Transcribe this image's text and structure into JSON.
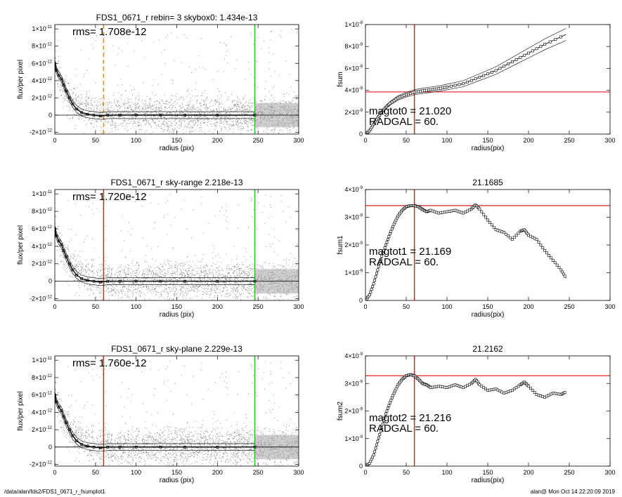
{
  "footer": {
    "path": "/data/alan/fds2/FDS1_0671_r_fsumplot1",
    "stamp": "alan@  Mon Oct 14 22:20:09 2019"
  },
  "colors": {
    "data": "#888888",
    "profile": "#000000",
    "red_line": "#dd2222",
    "green_line": "#22cc22",
    "orange_line": "#ee8822"
  },
  "chart_data": [
    {
      "type": "scatter",
      "title": "FDS1_0671_r rebin= 3    skybox0:  1.434e-13",
      "annotation": "rms= 1.708e-12",
      "xlabel": "radius (pix)",
      "ylabel": "flux/per pixel",
      "xlim": [
        0,
        300
      ],
      "ylim": [
        -2.2e-12,
        1.05e-11
      ],
      "xticks": [
        0,
        50,
        100,
        150,
        200,
        250,
        300
      ],
      "xtick_labels": [
        "0",
        "50",
        "100",
        "150",
        "200",
        "250",
        "300"
      ],
      "yticks": [
        -2e-12,
        0,
        2e-12,
        4e-12,
        6e-12,
        8e-12,
        1e-11
      ],
      "ytick_labels": [
        [
          "-2×10",
          "-12"
        ],
        [
          "0",
          ""
        ],
        [
          "2×10",
          "-12"
        ],
        [
          "4×10",
          "-12"
        ],
        [
          "6×10",
          "-12"
        ],
        [
          "8×10",
          "-12"
        ],
        [
          "1×10",
          "-11"
        ]
      ],
      "vlines": [
        {
          "x": 60,
          "color": "orange",
          "style": "dashed"
        },
        {
          "x": 246,
          "color": "green"
        }
      ],
      "hlines": [
        {
          "y": 0
        }
      ],
      "profile": {
        "x": [
          0,
          2,
          5,
          8,
          11,
          14,
          18,
          22,
          27,
          33,
          40,
          48,
          56,
          65,
          80,
          100,
          130,
          160,
          200,
          246
        ],
        "y": [
          6e-12,
          5.2e-12,
          4.6e-12,
          4.2e-12,
          3.5e-12,
          2.8e-12,
          2e-12,
          1.3e-12,
          7e-13,
          3e-13,
          1e-13,
          0,
          -1e-13,
          0,
          0,
          0,
          0,
          0,
          0,
          0
        ]
      }
    },
    {
      "type": "line",
      "title": "",
      "ylabel": "fsum",
      "xlabel": "radius(pix)",
      "xlim": [
        0,
        300
      ],
      "ylim": [
        0,
        1e-08
      ],
      "xticks": [
        0,
        50,
        100,
        150,
        200,
        250,
        300
      ],
      "xtick_labels": [
        "0",
        "50",
        "100",
        "150",
        "200",
        "250",
        "300"
      ],
      "yticks": [
        0,
        2e-09,
        4e-09,
        6e-09,
        8e-09,
        1e-08
      ],
      "ytick_labels": [
        [
          "0",
          ""
        ],
        [
          "2×10",
          "-9"
        ],
        [
          "4×10",
          "-9"
        ],
        [
          "6×10",
          "-9"
        ],
        [
          "8×10",
          "-9"
        ],
        [
          "1×10",
          "-8"
        ]
      ],
      "annotations": [
        "magtot0 =  21.020",
        "RADGAL =    60."
      ],
      "vlines": [
        {
          "x": 60,
          "color": "red"
        }
      ],
      "hlines": [
        {
          "y": 3.85e-09,
          "color": "red"
        }
      ],
      "series": [
        {
          "x": [
            0,
            5,
            10,
            15,
            20,
            25,
            30,
            40,
            50,
            60,
            70,
            80,
            90,
            100,
            120,
            140,
            160,
            180,
            200,
            220,
            246
          ],
          "values": [
            0.0,
            3e-10,
            9e-10,
            1.5e-09,
            2e-09,
            2.45e-09,
            2.8e-09,
            3.3e-09,
            3.6e-09,
            3.82e-09,
            3.95e-09,
            4.05e-09,
            4.15e-09,
            4.3e-09,
            4.6e-09,
            5.2e-09,
            5.8e-09,
            6.6e-09,
            7.4e-09,
            8.2e-09,
            9.1e-09
          ]
        }
      ]
    },
    {
      "type": "scatter",
      "title": "FDS1_0671_r sky-range  2.218e-13",
      "annotation": "rms= 1.720e-12",
      "xlabel": "radius (pix)",
      "ylabel": "flux/per pixel",
      "xlim": [
        0,
        300
      ],
      "ylim": [
        -2.2e-12,
        1.05e-11
      ],
      "xticks": [
        0,
        50,
        100,
        150,
        200,
        250,
        300
      ],
      "xtick_labels": [
        "0",
        "50",
        "100",
        "150",
        "200",
        "250",
        "300"
      ],
      "yticks": [
        -2e-12,
        0,
        2e-12,
        4e-12,
        6e-12,
        8e-12,
        1e-11
      ],
      "ytick_labels": [
        [
          "-2×10",
          "-12"
        ],
        [
          "0",
          ""
        ],
        [
          "2×10",
          "-12"
        ],
        [
          "4×10",
          "-12"
        ],
        [
          "6×10",
          "-12"
        ],
        [
          "8×10",
          "-12"
        ],
        [
          "1×10",
          "-11"
        ]
      ],
      "vlines": [
        {
          "x": 60,
          "color": "red"
        },
        {
          "x": 246,
          "color": "green"
        }
      ],
      "hlines": [
        {
          "y": 0
        }
      ],
      "profile": {
        "x": [
          0,
          2,
          5,
          8,
          11,
          14,
          18,
          22,
          27,
          33,
          40,
          48,
          56,
          65,
          80,
          100,
          130,
          160,
          200,
          246
        ],
        "y": [
          6e-12,
          5.2e-12,
          4.6e-12,
          4.2e-12,
          3.5e-12,
          2.8e-12,
          2e-12,
          1.3e-12,
          7e-13,
          3e-13,
          1e-13,
          0,
          -1e-13,
          0,
          0,
          0,
          0,
          0,
          0,
          0
        ]
      }
    },
    {
      "type": "scatter",
      "title": "21.1685",
      "ylabel": "fsum1",
      "xlabel": "radius(pix)",
      "xlim": [
        0,
        300
      ],
      "ylim": [
        0,
        4e-09
      ],
      "xticks": [
        0,
        50,
        100,
        150,
        200,
        250,
        300
      ],
      "xtick_labels": [
        "0",
        "50",
        "100",
        "150",
        "200",
        "250",
        "300"
      ],
      "yticks": [
        0,
        1e-09,
        2e-09,
        3e-09,
        4e-09
      ],
      "ytick_labels": [
        [
          "0",
          ""
        ],
        [
          "1×10",
          "-9"
        ],
        [
          "2×10",
          "-9"
        ],
        [
          "3×10",
          "-9"
        ],
        [
          "4×10",
          "-9"
        ]
      ],
      "annotations": [
        "magtot1 =  21.169",
        "RADGAL =    60."
      ],
      "vlines": [
        {
          "x": 60,
          "color": "red"
        }
      ],
      "hlines": [
        {
          "y": 3.42e-09,
          "color": "red"
        }
      ],
      "series": [
        {
          "x": [
            0,
            5,
            10,
            15,
            20,
            25,
            30,
            35,
            40,
            45,
            50,
            55,
            60,
            65,
            70,
            75,
            80,
            90,
            100,
            110,
            120,
            130,
            135,
            140,
            150,
            160,
            170,
            180,
            190,
            195,
            200,
            210,
            220,
            230,
            240,
            246
          ],
          "values": [
            0.0,
            2e-10,
            6e-10,
            1.1e-09,
            1.6e-09,
            2e-09,
            2.4e-09,
            2.75e-09,
            3.05e-09,
            3.25e-09,
            3.38e-09,
            3.42e-09,
            3.42e-09,
            3.38e-09,
            3.28e-09,
            3.2e-09,
            3.25e-09,
            3.15e-09,
            3.2e-09,
            3.25e-09,
            3.15e-09,
            3.3e-09,
            3.45e-09,
            3.3e-09,
            2.9e-09,
            2.55e-09,
            2.45e-09,
            2.2e-09,
            2.5e-09,
            2.55e-09,
            2.35e-09,
            2.2e-09,
            1.8e-09,
            1.45e-09,
            1.1e-09,
            8e-10
          ]
        }
      ]
    },
    {
      "type": "scatter",
      "title": "FDS1_0671_r sky-plane  2.229e-13",
      "annotation": "rms= 1.760e-12",
      "xlabel": "radius (pix)",
      "ylabel": "flux/per pixel",
      "xlim": [
        0,
        300
      ],
      "ylim": [
        -2.2e-12,
        1.05e-11
      ],
      "xticks": [
        0,
        50,
        100,
        150,
        200,
        250,
        300
      ],
      "xtick_labels": [
        "0",
        "50",
        "100",
        "150",
        "200",
        "250",
        "300"
      ],
      "yticks": [
        -2e-12,
        0,
        2e-12,
        4e-12,
        6e-12,
        8e-12,
        1e-11
      ],
      "ytick_labels": [
        [
          "-2×10",
          "-12"
        ],
        [
          "0",
          ""
        ],
        [
          "2×10",
          "-12"
        ],
        [
          "4×10",
          "-12"
        ],
        [
          "6×10",
          "-12"
        ],
        [
          "8×10",
          "-12"
        ],
        [
          "1×10",
          "-11"
        ]
      ],
      "vlines": [
        {
          "x": 60,
          "color": "red"
        },
        {
          "x": 246,
          "color": "green"
        }
      ],
      "hlines": [
        {
          "y": 0
        }
      ],
      "profile": {
        "x": [
          0,
          2,
          5,
          8,
          11,
          14,
          18,
          22,
          27,
          33,
          40,
          48,
          56,
          65,
          80,
          100,
          130,
          160,
          200,
          246
        ],
        "y": [
          6e-12,
          5.2e-12,
          4.6e-12,
          4.2e-12,
          3.5e-12,
          2.8e-12,
          2e-12,
          1.3e-12,
          7e-13,
          3e-13,
          1e-13,
          0,
          -1e-13,
          0,
          0,
          0,
          0,
          0,
          0,
          0
        ]
      }
    },
    {
      "type": "scatter",
      "title": "21.2162",
      "ylabel": "fsum2",
      "xlabel": "radius(pix)",
      "xlim": [
        0,
        300
      ],
      "ylim": [
        0,
        4e-09
      ],
      "xticks": [
        0,
        50,
        100,
        150,
        200,
        250,
        300
      ],
      "xtick_labels": [
        "0",
        "50",
        "100",
        "150",
        "200",
        "250",
        "300"
      ],
      "yticks": [
        0,
        1e-09,
        2e-09,
        3e-09,
        4e-09
      ],
      "ytick_labels": [
        [
          "0",
          ""
        ],
        [
          "1×10",
          "-9"
        ],
        [
          "2×10",
          "-9"
        ],
        [
          "3×10",
          "-9"
        ],
        [
          "4×10",
          "-9"
        ]
      ],
      "annotations": [
        "magtot2 =  21.216",
        "RADGAL =    60."
      ],
      "vlines": [
        {
          "x": 60,
          "color": "red"
        }
      ],
      "hlines": [
        {
          "y": 3.28e-09,
          "color": "red"
        }
      ],
      "series": [
        {
          "x": [
            0,
            5,
            10,
            15,
            20,
            25,
            30,
            35,
            40,
            45,
            50,
            55,
            60,
            65,
            70,
            75,
            80,
            90,
            100,
            110,
            120,
            130,
            135,
            140,
            150,
            160,
            170,
            180,
            190,
            195,
            200,
            210,
            220,
            230,
            240,
            246
          ],
          "values": [
            0.0,
            1e-10,
            4e-10,
            9e-10,
            1.4e-09,
            1.9e-09,
            2.3e-09,
            2.65e-09,
            2.95e-09,
            3.15e-09,
            3.28e-09,
            3.32e-09,
            3.28e-09,
            3.15e-09,
            3e-09,
            2.95e-09,
            2.85e-09,
            2.9e-09,
            2.85e-09,
            2.95e-09,
            2.85e-09,
            3e-09,
            3.15e-09,
            2.95e-09,
            2.75e-09,
            2.8e-09,
            2.65e-09,
            2.75e-09,
            2.95e-09,
            3.05e-09,
            2.9e-09,
            2.6e-09,
            2.5e-09,
            2.65e-09,
            2.6e-09,
            2.7e-09
          ]
        }
      ]
    }
  ]
}
